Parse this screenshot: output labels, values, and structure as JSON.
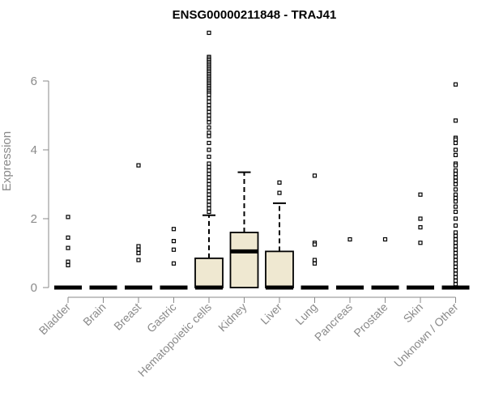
{
  "chart_data": {
    "type": "box",
    "title": "ENSG00000211848 - TRAJ41",
    "ylabel": "Expression",
    "ylim": [
      0,
      7.5
    ],
    "yticks": [
      0,
      2,
      4,
      6
    ],
    "box_fill": "#efe8d1",
    "categories": [
      "Bladder",
      "Brain",
      "Breast",
      "Gastric",
      "Hematopoietic cells",
      "Kidney",
      "Liver",
      "Lung",
      "Pancreas",
      "Prostate",
      "Skin",
      "Unknown / Other"
    ],
    "boxes": [
      {
        "q1": 0,
        "median": 0,
        "q3": 0,
        "whisker_low": 0,
        "whisker_high": 0,
        "outliers": [
          2.05,
          1.45,
          1.15,
          0.75,
          0.65
        ]
      },
      {
        "q1": 0,
        "median": 0,
        "q3": 0,
        "whisker_low": 0,
        "whisker_high": 0,
        "outliers": []
      },
      {
        "q1": 0,
        "median": 0,
        "q3": 0,
        "whisker_low": 0,
        "whisker_high": 0,
        "outliers": [
          3.55,
          1.2,
          1.1,
          1.0,
          0.8
        ]
      },
      {
        "q1": 0,
        "median": 0,
        "q3": 0,
        "whisker_low": 0,
        "whisker_high": 0,
        "outliers": [
          1.7,
          1.35,
          1.1,
          0.7
        ]
      },
      {
        "q1": 0,
        "median": 0,
        "q3": 0.85,
        "whisker_low": 0,
        "whisker_high": 2.1,
        "outliers": [
          7.4,
          6.7,
          6.65,
          6.6,
          6.55,
          6.5,
          6.45,
          6.4,
          6.35,
          6.3,
          6.25,
          6.2,
          6.15,
          6.1,
          6.05,
          6.0,
          5.95,
          5.9,
          5.85,
          5.8,
          5.75,
          5.7,
          5.65,
          5.6,
          5.5,
          5.4,
          5.3,
          5.2,
          5.1,
          5.0,
          4.9,
          4.8,
          4.65,
          4.5,
          4.4,
          4.2,
          4.0,
          3.8,
          3.6,
          3.5,
          3.4,
          3.3,
          3.2,
          3.1,
          3.0,
          2.9,
          2.8,
          2.7,
          2.6,
          2.5,
          2.4,
          2.3,
          2.2
        ]
      },
      {
        "q1": 0,
        "median": 1.05,
        "q3": 1.6,
        "whisker_low": 0,
        "whisker_high": 3.35,
        "outliers": []
      },
      {
        "q1": 0,
        "median": 0,
        "q3": 1.05,
        "whisker_low": 0,
        "whisker_high": 2.45,
        "outliers": [
          3.05,
          2.75
        ]
      },
      {
        "q1": 0,
        "median": 0,
        "q3": 0,
        "whisker_low": 0,
        "whisker_high": 0,
        "outliers": [
          3.25,
          1.3,
          1.25,
          0.8,
          0.7
        ]
      },
      {
        "q1": 0,
        "median": 0,
        "q3": 0,
        "whisker_low": 0,
        "whisker_high": 0,
        "outliers": [
          1.4
        ]
      },
      {
        "q1": 0,
        "median": 0,
        "q3": 0,
        "whisker_low": 0,
        "whisker_high": 0,
        "outliers": [
          1.4
        ]
      },
      {
        "q1": 0,
        "median": 0,
        "q3": 0,
        "whisker_low": 0,
        "whisker_high": 0,
        "outliers": [
          2.7,
          2.0,
          1.75,
          1.3
        ]
      },
      {
        "q1": 0,
        "median": 0,
        "q3": 0,
        "whisker_low": 0,
        "whisker_high": 0,
        "outliers": [
          5.9,
          4.85,
          4.35,
          4.3,
          4.2,
          4.0,
          3.85,
          3.6,
          3.55,
          3.4,
          3.3,
          3.2,
          3.1,
          3.0,
          2.85,
          2.7,
          2.6,
          2.5,
          2.35,
          2.2,
          2.0,
          1.8,
          1.6,
          1.5,
          1.4,
          1.3,
          1.2,
          1.1,
          1.0,
          0.9,
          0.8,
          0.7,
          0.6,
          0.5,
          0.4,
          0.3,
          0.2,
          0.1
        ]
      }
    ]
  }
}
